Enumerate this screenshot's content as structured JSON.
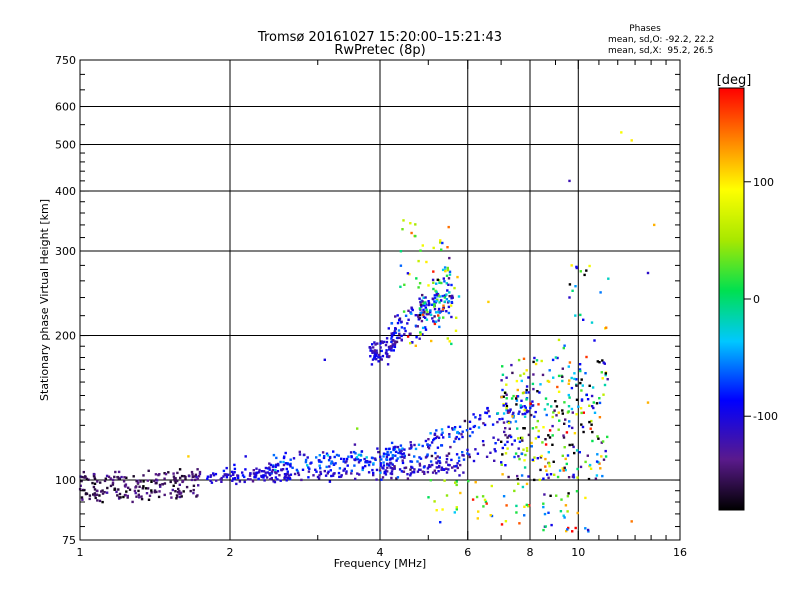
{
  "chart_data": {
    "type": "scatter",
    "title": "Tromsø 20161027 15:20:00–15:21:43",
    "subtitle": "RwPretec (8p)",
    "phases": {
      "heading": "Phases",
      "line_o": "mean, sd,O: -92.2, 22.2",
      "line_x": "mean, sd,X:  95.2, 26.5"
    },
    "xlabel": "Frequency [MHz]",
    "ylabel": "Stationary phase Virtual Height [km]",
    "x_scale": "log",
    "y_scale": "log",
    "xlim": [
      1,
      16
    ],
    "ylim": [
      75,
      750
    ],
    "x_ticks": [
      1,
      2,
      4,
      6,
      8,
      10,
      16
    ],
    "x_minor_ticks": [
      3,
      5,
      7,
      9,
      11,
      12,
      13,
      14,
      15
    ],
    "x_grid": [
      2,
      4,
      6,
      8,
      10
    ],
    "y_ticks": [
      75,
      100,
      200,
      300,
      400,
      500,
      600,
      750
    ],
    "y_grid": [
      100,
      200,
      300,
      400,
      500,
      600
    ],
    "grid": true,
    "colorbar": {
      "label": "[deg]",
      "ticks": [
        100,
        0,
        -100
      ],
      "range": [
        -180,
        180
      ],
      "placement": "right"
    },
    "traces": [
      {
        "x0": 1.0,
        "x1": 1.75,
        "y0": 100,
        "y1": 101,
        "jitter": 0.02,
        "n": 110,
        "phase": -150,
        "phase_sd": 15
      },
      {
        "x0": 1.0,
        "x1": 1.75,
        "y0": 93,
        "y1": 95,
        "jitter": 0.02,
        "n": 95,
        "phase": -155,
        "phase_sd": 15
      },
      {
        "x0": 1.8,
        "x1": 2.6,
        "y0": 101,
        "y1": 105,
        "jitter": 0.02,
        "n": 70,
        "phase": -110,
        "phase_sd": 15
      },
      {
        "x0": 2.4,
        "x1": 4.5,
        "y0": 107,
        "y1": 113,
        "jitter": 0.025,
        "n": 150,
        "phase": -80,
        "phase_sd": 25
      },
      {
        "x0": 2.0,
        "x1": 5.8,
        "y0": 101,
        "y1": 106,
        "jitter": 0.015,
        "n": 150,
        "phase": -110,
        "phase_sd": 15
      },
      {
        "x0": 4.0,
        "x1": 8.2,
        "y0": 110,
        "y1": 145,
        "jitter": 0.03,
        "n": 140,
        "phase": -90,
        "phase_sd": 25
      },
      {
        "x0": 4.0,
        "x1": 7.5,
        "y0": 104,
        "y1": 120,
        "jitter": 0.03,
        "n": 90,
        "phase": -100,
        "phase_sd": 25
      },
      {
        "x0": 3.8,
        "x1": 4.3,
        "y0": 180,
        "y1": 192,
        "jitter": 0.03,
        "n": 70,
        "phase": -110,
        "phase_sd": 15
      },
      {
        "x0": 4.2,
        "x1": 5.6,
        "y0": 200,
        "y1": 240,
        "jitter": 0.05,
        "n": 120,
        "phase": -100,
        "phase_sd": 25
      },
      {
        "x0": 4.8,
        "x1": 5.6,
        "y0": 215,
        "y1": 270,
        "jitter": 0.06,
        "n": 70,
        "phase": -60,
        "phase_sd": 60
      }
    ],
    "clouds": [
      {
        "x0": 4.3,
        "x1": 5.8,
        "y0": 190,
        "y1": 350,
        "n": 60,
        "phase": 60,
        "phase_sd": 70
      },
      {
        "x0": 7.0,
        "x1": 11.5,
        "y0": 100,
        "y1": 180,
        "n": 300,
        "phase": -40,
        "phase_sd": 110
      },
      {
        "x0": 5.0,
        "x1": 8.0,
        "y0": 80,
        "y1": 100,
        "n": 45,
        "phase": 60,
        "phase_sd": 60
      },
      {
        "x0": 8.5,
        "x1": 10.5,
        "y0": 78,
        "y1": 95,
        "n": 30,
        "phase": 0,
        "phase_sd": 110
      },
      {
        "x0": 9.0,
        "x1": 11.5,
        "y0": 150,
        "y1": 280,
        "n": 30,
        "phase": -50,
        "phase_sd": 100
      }
    ],
    "points": [
      {
        "x": 9.6,
        "y": 420,
        "phase": -120
      },
      {
        "x": 12.2,
        "y": 530,
        "phase": 90
      },
      {
        "x": 12.8,
        "y": 510,
        "phase": 100
      },
      {
        "x": 14.2,
        "y": 340,
        "phase": 120
      },
      {
        "x": 13.8,
        "y": 270,
        "phase": -110
      },
      {
        "x": 13.8,
        "y": 145,
        "phase": 120
      },
      {
        "x": 12.8,
        "y": 82,
        "phase": 140
      },
      {
        "x": 3.1,
        "y": 178,
        "phase": -100
      },
      {
        "x": 3.6,
        "y": 128,
        "phase": 40
      },
      {
        "x": 1.65,
        "y": 112,
        "phase": 110
      },
      {
        "x": 2.15,
        "y": 112,
        "phase": -100
      },
      {
        "x": 6.6,
        "y": 235,
        "phase": 110
      },
      {
        "x": 9.7,
        "y": 280,
        "phase": 100
      },
      {
        "x": 9.6,
        "y": 240,
        "phase": -110
      }
    ]
  }
}
